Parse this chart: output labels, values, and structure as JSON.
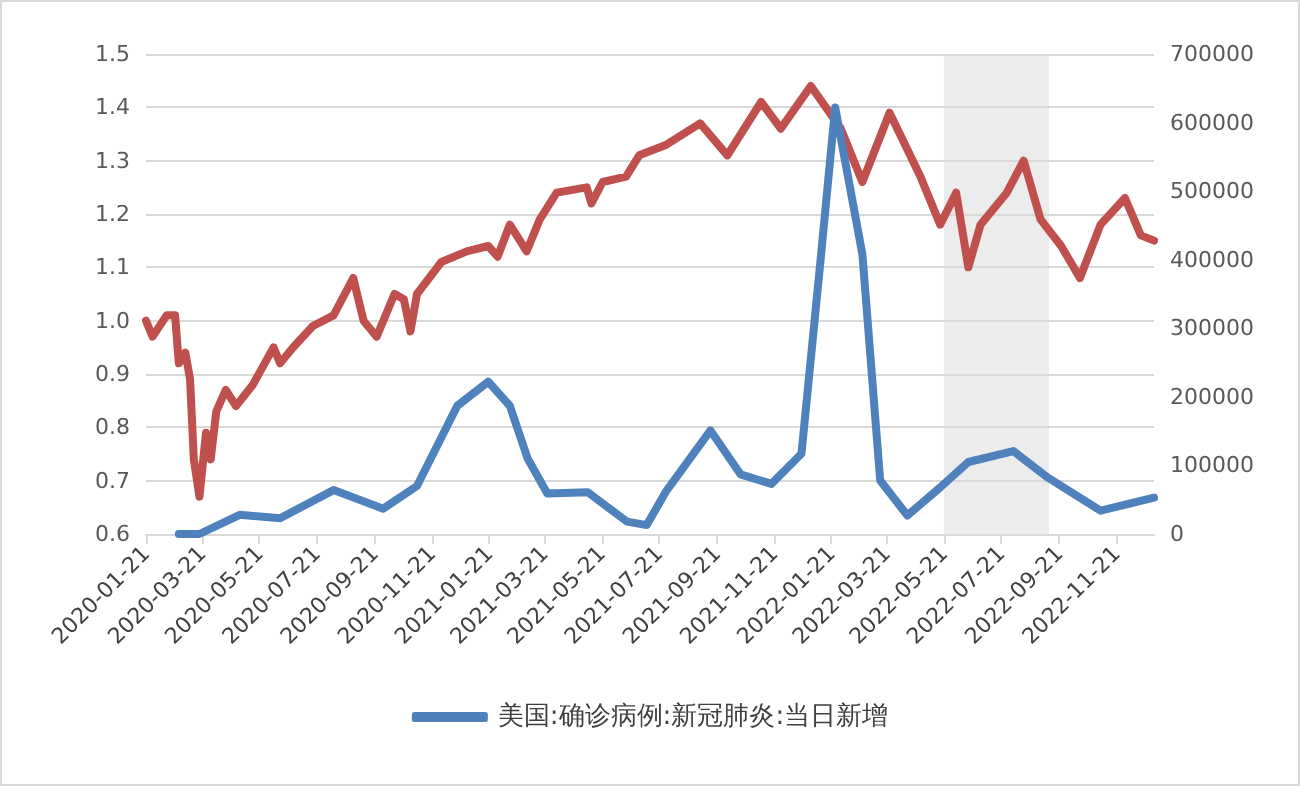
{
  "chart_data": {
    "type": "line",
    "x": [
      "2020-01-21",
      "2020-01-28",
      "2020-02-12",
      "2020-02-21",
      "2020-02-25",
      "2020-03-03",
      "2020-03-08",
      "2020-03-12",
      "2020-03-18",
      "2020-03-25",
      "2020-03-30",
      "2020-04-05",
      "2020-04-15",
      "2020-04-26",
      "2020-05-14",
      "2020-06-05",
      "2020-06-12",
      "2020-06-26",
      "2020-07-17",
      "2020-08-08",
      "2020-08-29",
      "2020-09-09",
      "2020-09-23",
      "2020-10-12",
      "2020-10-22",
      "2020-10-29",
      "2020-11-05",
      "2020-12-01",
      "2020-12-28",
      "2021-01-20",
      "2021-01-30",
      "2021-02-12",
      "2021-03-02",
      "2021-03-16",
      "2021-04-03",
      "2021-05-05",
      "2021-05-10",
      "2021-05-22",
      "2021-06-16",
      "2021-06-30",
      "2021-07-29",
      "2021-09-03",
      "2021-10-02",
      "2021-11-07",
      "2021-11-28",
      "2021-12-30",
      "2022-01-31",
      "2022-02-23",
      "2022-03-24",
      "2022-04-26",
      "2022-05-17",
      "2022-06-03",
      "2022-06-16",
      "2022-06-29",
      "2022-07-27",
      "2022-08-14",
      "2022-09-01",
      "2022-09-23",
      "2022-10-13",
      "2022-11-04",
      "2022-11-30",
      "2022-12-17",
      "2022-12-31"
    ],
    "series": [
      {
        "color": "#c0504d",
        "values": [
          1.0,
          0.97,
          1.01,
          1.01,
          0.92,
          0.94,
          0.89,
          0.74,
          0.67,
          0.79,
          0.74,
          0.83,
          0.87,
          0.84,
          0.88,
          0.95,
          0.92,
          0.95,
          0.99,
          1.01,
          1.08,
          1.0,
          0.97,
          1.05,
          1.04,
          0.98,
          1.05,
          1.11,
          1.13,
          1.14,
          1.12,
          1.18,
          1.13,
          1.19,
          1.24,
          1.25,
          1.22,
          1.26,
          1.27,
          1.31,
          1.33,
          1.37,
          1.31,
          1.41,
          1.36,
          1.44,
          1.36,
          1.26,
          1.39,
          1.27,
          1.18,
          1.24,
          1.1,
          1.18,
          1.24,
          1.3,
          1.19,
          1.14,
          1.08,
          1.18,
          1.23,
          1.16,
          1.15
        ]
      },
      {
        "name": "美国:确诊病例:新冠肺炎:当日新增",
        "color": "#4f81bd",
        "axis": "y2",
        "x": [
          "2020-02-25",
          "2020-03-18",
          "2020-04-30",
          "2020-06-12",
          "2020-08-08",
          "2020-09-30",
          "2020-11-05",
          "2020-12-18",
          "2021-01-20",
          "2021-02-12",
          "2021-03-03",
          "2021-03-24",
          "2021-05-06",
          "2021-06-17",
          "2021-07-08",
          "2021-07-29",
          "2021-09-14",
          "2021-10-16",
          "2021-11-18",
          "2021-12-20",
          "2022-01-10",
          "2022-01-25",
          "2022-02-23",
          "2022-03-14",
          "2022-04-12",
          "2022-05-17",
          "2022-06-16",
          "2022-08-03",
          "2022-09-08",
          "2022-11-04",
          "2022-12-31"
        ],
        "values": [
          0,
          0,
          28000,
          23000,
          64000,
          37000,
          70000,
          187000,
          222000,
          187000,
          110000,
          59000,
          61000,
          18000,
          13000,
          63000,
          151000,
          87000,
          73000,
          117000,
          408000,
          622000,
          408000,
          78000,
          27000,
          68000,
          105000,
          121000,
          83000,
          34000,
          53000
        ]
      }
    ],
    "xlim": [
      "2020-01-21",
      "2022-12-31"
    ],
    "xticks": [
      "2020-01-21",
      "2020-03-21",
      "2020-05-21",
      "2020-07-21",
      "2020-09-21",
      "2020-11-21",
      "2021-01-21",
      "2021-03-21",
      "2021-05-21",
      "2021-07-21",
      "2021-09-21",
      "2021-11-21",
      "2022-01-21",
      "2022-03-21",
      "2022-05-21",
      "2022-07-21",
      "2022-09-21",
      "2022-11-21"
    ],
    "ylim": [
      0.6,
      1.5
    ],
    "yticks": [
      0.6,
      0.7,
      0.8,
      0.9,
      {
        "value": 1,
        "label": "1.0"
      },
      1.1,
      1.2,
      1.3,
      1.4,
      1.5
    ],
    "y2lim": [
      0,
      700000
    ],
    "y2ticks": [
      0,
      100000,
      200000,
      300000,
      400000,
      500000,
      600000,
      700000
    ],
    "bands": [
      {
        "axis": "x",
        "from": "2022-05-21",
        "to": "2022-09-10",
        "color": "#d9d9d9"
      }
    ],
    "grid": "y",
    "legend": "bottom",
    "marker": "none",
    "line_style": "solid"
  }
}
